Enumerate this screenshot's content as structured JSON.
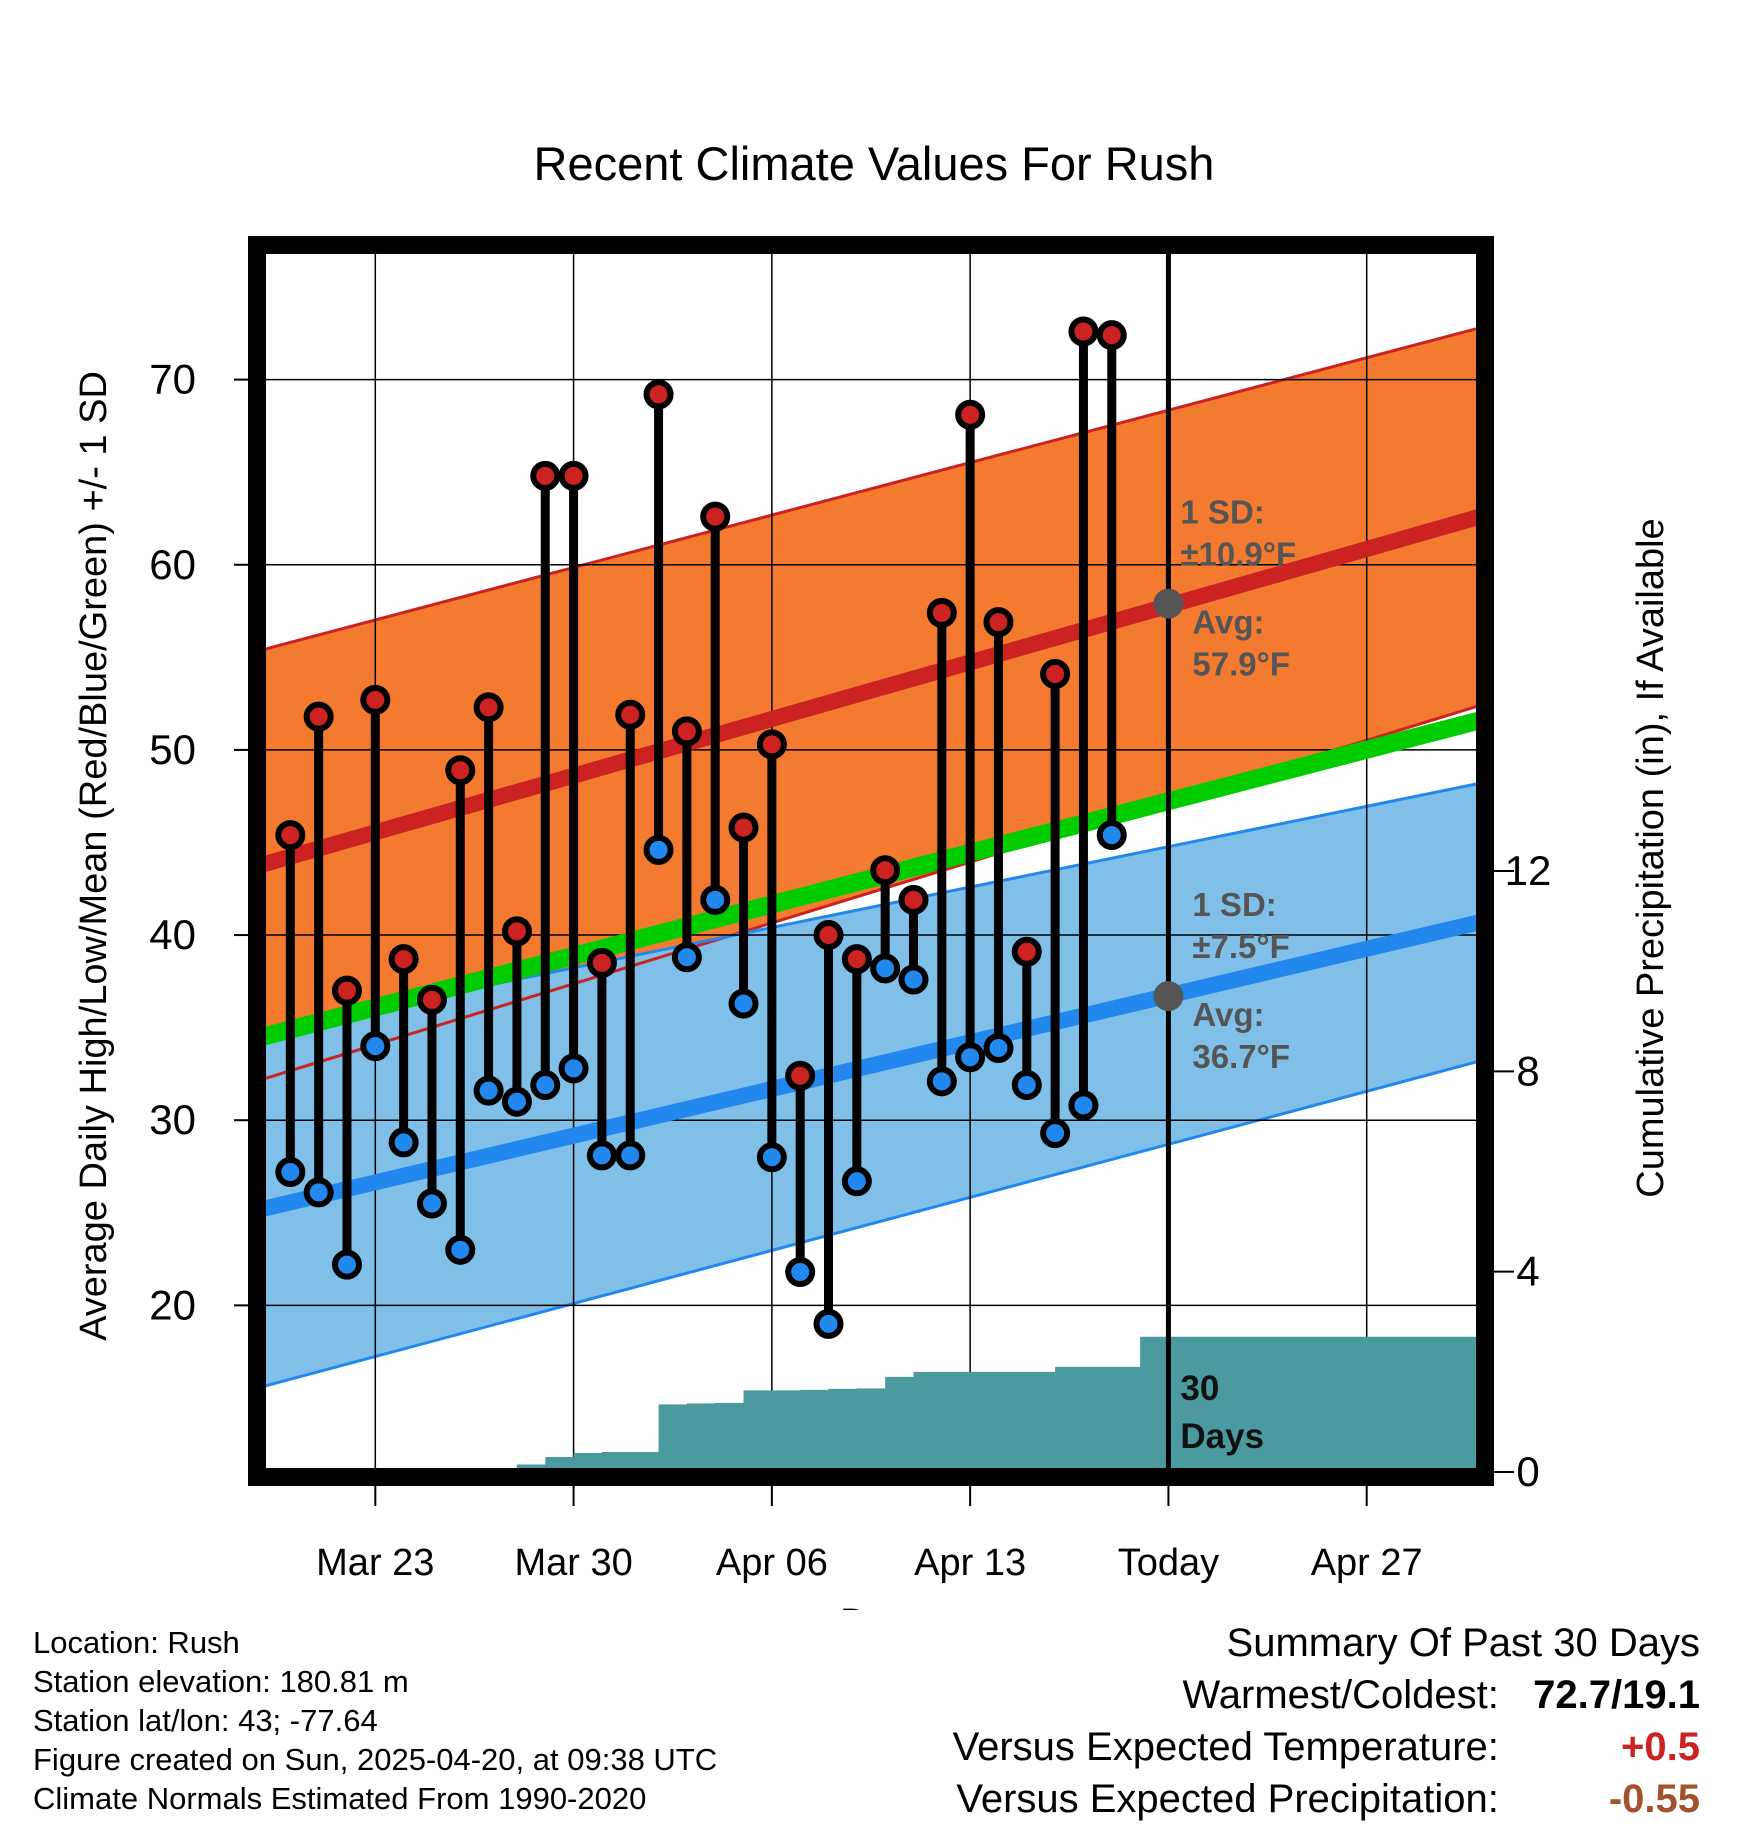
{
  "chart_data": {
    "type": "line",
    "title": "Recent Climate Values For Rush",
    "xlabel": "Day",
    "ylabel": "Average Daily High/Low/Mean (Red/Blue/Green) +/- 1 SD",
    "y2label": "Cumulative Precipitation (in), If Available",
    "x_range": [
      "2025-03-19",
      "2025-05-01"
    ],
    "ylim": [
      11,
      77
    ],
    "y2lim": [
      0,
      24.4
    ],
    "yticks": [
      20,
      30,
      40,
      50,
      60,
      70
    ],
    "y2ticks": [
      0,
      4,
      8,
      12
    ],
    "xtick_labels": [
      "Mar 23",
      "Mar 30",
      "Apr 06",
      "Apr 13",
      "Today",
      "Apr 27"
    ],
    "xtick_dates": [
      "2025-03-23",
      "2025-03-30",
      "2025-04-06",
      "2025-04-13",
      "2025-04-20",
      "2025-04-27"
    ],
    "today": "2025-04-20",
    "grid": true,
    "colors": {
      "high_band": "#f47a30",
      "high_line": "#cc2222",
      "low_band": "#80c0e8",
      "low_line": "#2288ee",
      "mean_line": "#00cc00",
      "precip": "#4a9aa0",
      "marker_high": "#cc2222",
      "marker_low": "#2288ee",
      "annotation": "#555555"
    },
    "normals": {
      "dates": [
        "2025-03-19",
        "2025-05-01"
      ],
      "high_mean": [
        43.8,
        62.6
      ],
      "high_sd": [
        11.6,
        10.2
      ],
      "low_mean": [
        25.2,
        40.7
      ],
      "low_sd": [
        9.6,
        7.5
      ],
      "avg_mean": [
        34.5,
        51.6
      ]
    },
    "daily": {
      "dates": [
        "2025-03-20",
        "2025-03-21",
        "2025-03-22",
        "2025-03-23",
        "2025-03-24",
        "2025-03-25",
        "2025-03-26",
        "2025-03-27",
        "2025-03-28",
        "2025-03-29",
        "2025-03-30",
        "2025-03-31",
        "2025-04-01",
        "2025-04-02",
        "2025-04-03",
        "2025-04-04",
        "2025-04-05",
        "2025-04-06",
        "2025-04-07",
        "2025-04-08",
        "2025-04-09",
        "2025-04-10",
        "2025-04-11",
        "2025-04-12",
        "2025-04-13",
        "2025-04-14",
        "2025-04-15",
        "2025-04-16",
        "2025-04-17",
        "2025-04-18",
        "2025-04-19"
      ],
      "high": [
        45.4,
        51.8,
        37.0,
        52.7,
        38.7,
        36.5,
        48.9,
        52.3,
        40.2,
        64.8,
        64.8,
        38.5,
        51.9,
        69.2,
        51.0,
        62.6,
        45.8,
        50.3,
        32.4,
        40.0,
        38.7,
        43.5,
        41.9,
        57.4,
        68.1,
        56.9,
        39.1,
        54.1,
        72.6,
        72.4,
        null
      ],
      "low": [
        27.2,
        26.1,
        22.2,
        34.0,
        28.8,
        25.5,
        23.0,
        31.6,
        31.0,
        31.9,
        32.8,
        28.1,
        28.1,
        44.6,
        38.8,
        41.9,
        36.3,
        28.0,
        21.8,
        19.0,
        26.7,
        38.2,
        37.6,
        32.1,
        33.4,
        33.9,
        31.9,
        29.3,
        30.8,
        45.4,
        null
      ]
    },
    "precip": {
      "dates": [
        "2025-03-19",
        "2025-03-26",
        "2025-03-27",
        "2025-03-28",
        "2025-03-29",
        "2025-03-30",
        "2025-03-31",
        "2025-04-01",
        "2025-04-02",
        "2025-04-03",
        "2025-04-04",
        "2025-04-05",
        "2025-04-06",
        "2025-04-07",
        "2025-04-08",
        "2025-04-09",
        "2025-04-10",
        "2025-04-11",
        "2025-04-12",
        "2025-04-13",
        "2025-04-14",
        "2025-04-15",
        "2025-04-16",
        "2025-04-17",
        "2025-04-18",
        "2025-04-19",
        "2025-05-01"
      ],
      "cumulative": [
        0,
        0,
        0,
        0.15,
        0.3,
        0.38,
        0.4,
        0.4,
        1.35,
        1.37,
        1.38,
        1.63,
        1.63,
        1.64,
        1.66,
        1.67,
        1.9,
        2.0,
        2.0,
        2.0,
        2.0,
        2.0,
        2.1,
        2.1,
        2.1,
        2.7,
        2.7
      ]
    },
    "annotations": {
      "high_sd_label": "1 SD:",
      "high_sd_value": "±10.9°F",
      "high_avg_label": "Avg:",
      "high_avg_value": "57.9°F",
      "low_sd_label": "1 SD:",
      "low_sd_value": "±7.5°F",
      "low_avg_label": "Avg:",
      "low_avg_value": "36.7°F",
      "today_high_avg": 57.9,
      "today_low_avg": 36.7,
      "period_label_1": "30",
      "period_label_2": "Days"
    }
  },
  "info": {
    "location": "Location: Rush",
    "elevation": "Station elevation: 180.81 m",
    "latlon": "Station lat/lon: 43; -77.64",
    "created": "Figure created on Sun, 2025-04-20, at 09:38 UTC",
    "normals": "Climate Normals Estimated From 1990-2020"
  },
  "summary": {
    "heading": "Summary Of Past 30 Days",
    "warm_label": "Warmest/Coldest:",
    "warm_value": "72.7/19.1",
    "temp_label": "Versus Expected Temperature:",
    "temp_value": "+0.5",
    "precip_label": "Versus Expected Precipitation:",
    "precip_value": "-0.55"
  }
}
